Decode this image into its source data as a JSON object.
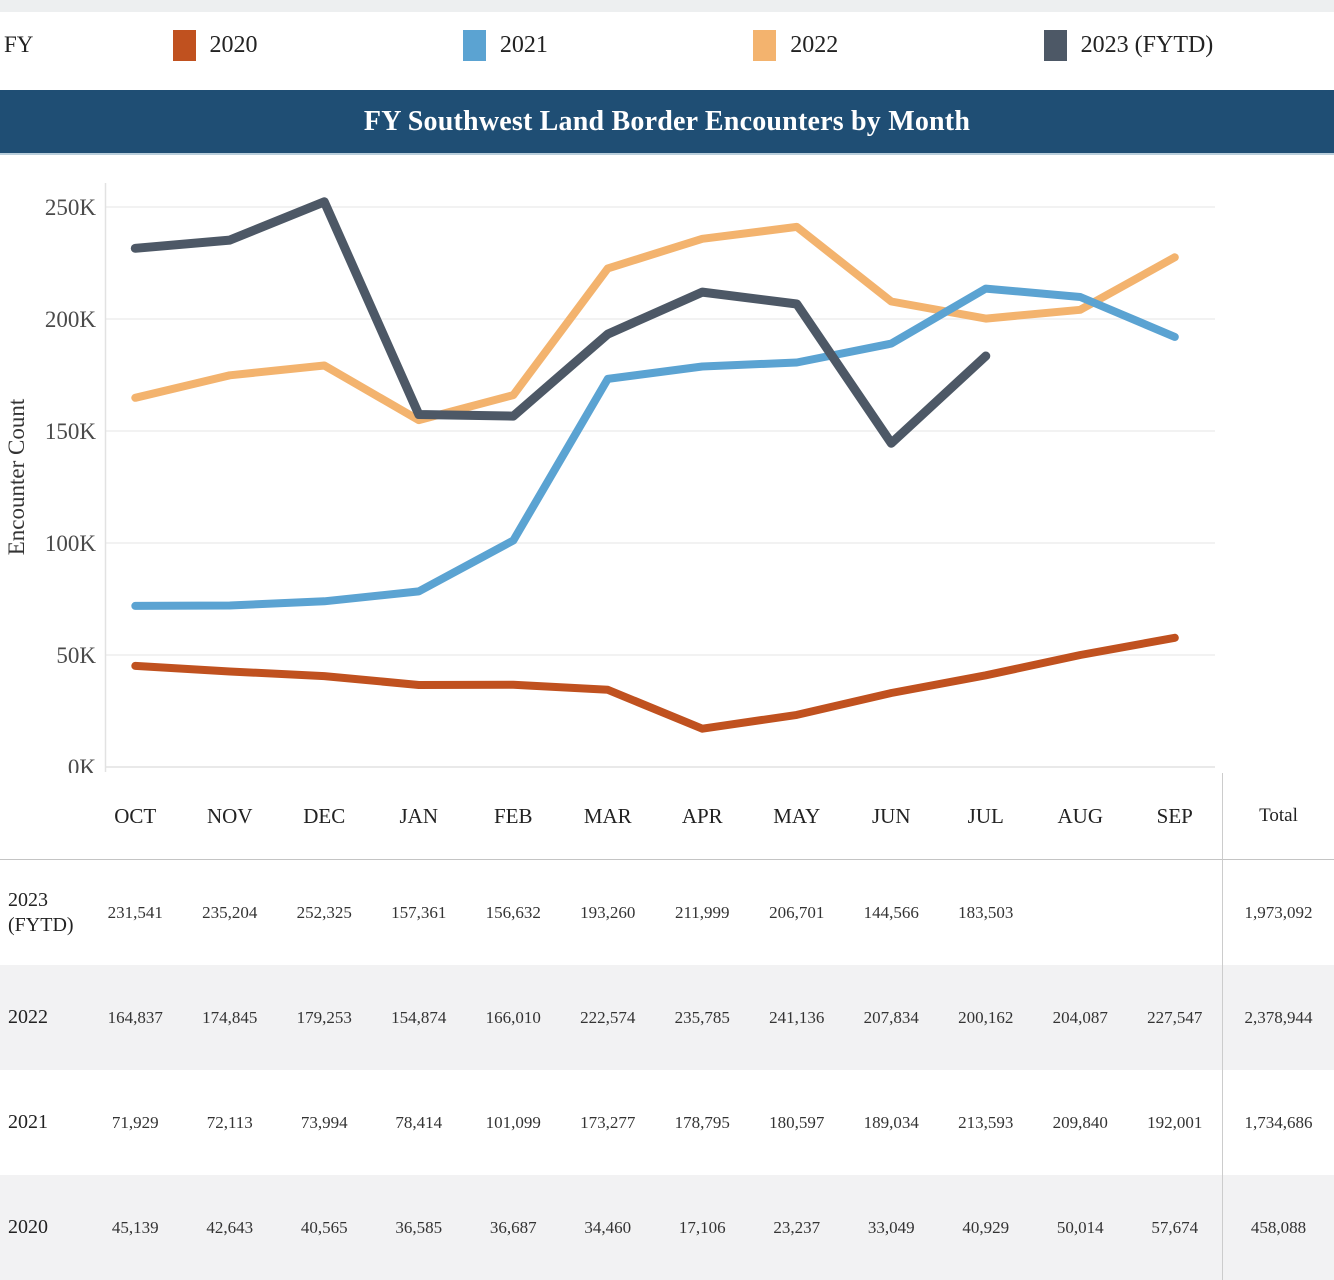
{
  "legend": {
    "title": "FY",
    "items": [
      {
        "label": "2020"
      },
      {
        "label": "2021"
      },
      {
        "label": "2022"
      },
      {
        "label": "2023 (FYTD)"
      }
    ]
  },
  "chart_data": {
    "type": "line",
    "title": "FY Southwest Land Border Encounters by Month",
    "xlabel": "",
    "ylabel": "Encounter Count",
    "x": [
      "OCT",
      "NOV",
      "DEC",
      "JAN",
      "FEB",
      "MAR",
      "APR",
      "MAY",
      "JUN",
      "JUL",
      "AUG",
      "SEP"
    ],
    "ylim": [
      0,
      262500
    ],
    "y_ticks": [
      {
        "label": "0K",
        "value": 0
      },
      {
        "label": "50K",
        "value": 50000
      },
      {
        "label": "100K",
        "value": 100000
      },
      {
        "label": "150K",
        "value": 150000
      },
      {
        "label": "200K",
        "value": 200000
      },
      {
        "label": "250K",
        "value": 250000
      }
    ],
    "grid": "horizontal",
    "legend_position": "top",
    "series": [
      {
        "name": "2020",
        "color": "#c0511f",
        "values": [
          45139,
          42643,
          40565,
          36585,
          36687,
          34460,
          17106,
          23237,
          33049,
          40929,
          50014,
          57674
        ]
      },
      {
        "name": "2021",
        "color": "#5ba3d2",
        "values": [
          71929,
          72113,
          73994,
          78414,
          101099,
          173277,
          178795,
          180597,
          189034,
          213593,
          209840,
          192001
        ]
      },
      {
        "name": "2022",
        "color": "#f3b36e",
        "values": [
          164837,
          174845,
          179253,
          154874,
          166010,
          222574,
          235785,
          241136,
          207834,
          200162,
          204087,
          227547
        ]
      },
      {
        "name": "2023 (FYTD)",
        "color": "#4d5866",
        "values": [
          231541,
          235204,
          252325,
          157361,
          156632,
          193260,
          211999,
          206701,
          144566,
          183503
        ]
      }
    ],
    "draw_order": [
      0,
      2,
      1,
      3
    ]
  },
  "table": {
    "columns": [
      "OCT",
      "NOV",
      "DEC",
      "JAN",
      "FEB",
      "MAR",
      "APR",
      "MAY",
      "JUN",
      "JUL",
      "AUG",
      "SEP"
    ],
    "total_label": "Total",
    "rows": [
      {
        "label": "2023 (FYTD)",
        "values": [
          "231,541",
          "235,204",
          "252,325",
          "157,361",
          "156,632",
          "193,260",
          "211,999",
          "206,701",
          "144,566",
          "183,503",
          "",
          ""
        ],
        "total": "1,973,092"
      },
      {
        "label": "2022",
        "values": [
          "164,837",
          "174,845",
          "179,253",
          "154,874",
          "166,010",
          "222,574",
          "235,785",
          "241,136",
          "207,834",
          "200,162",
          "204,087",
          "227,547"
        ],
        "total": "2,378,944"
      },
      {
        "label": "2021",
        "values": [
          "71,929",
          "72,113",
          "73,994",
          "78,414",
          "101,099",
          "173,277",
          "178,795",
          "180,597",
          "189,034",
          "213,593",
          "209,840",
          "192,001"
        ],
        "total": "1,734,686"
      },
      {
        "label": "2020",
        "values": [
          "45,139",
          "42,643",
          "40,565",
          "36,585",
          "36,687",
          "34,460",
          "17,106",
          "23,237",
          "33,049",
          "40,929",
          "50,014",
          "57,674"
        ],
        "total": "458,088"
      }
    ]
  },
  "colors": {
    "title_bar": "#1f4e74",
    "fy2020": "#c0511f",
    "fy2021": "#5ba3d2",
    "fy2022": "#f3b36e",
    "fy2023": "#4d5866",
    "alt_row": "#f2f2f3",
    "gridline": "#ededee",
    "axis_line": "#e2e2e2",
    "tick_text": "#4a4a4a"
  }
}
